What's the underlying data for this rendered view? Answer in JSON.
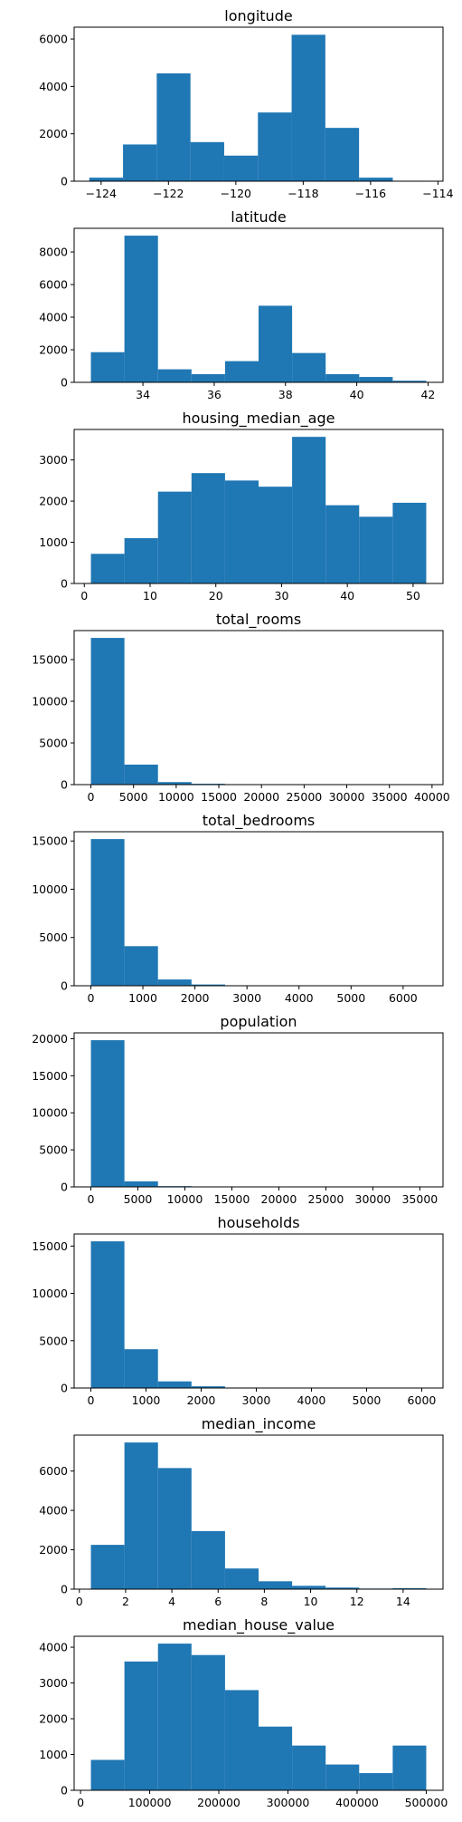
{
  "bar_color": "#1f77b4",
  "chart_data": [
    {
      "type": "bar",
      "title": "longitude",
      "bin_edges": [
        -124.35,
        -123.349,
        -122.348,
        -121.347,
        -120.346,
        -119.345,
        -118.344,
        -117.343,
        -116.342,
        -115.341,
        -114.31
      ],
      "values": [
        150,
        1550,
        4550,
        1650,
        1080,
        2900,
        6180,
        2250,
        150,
        20
      ],
      "xlim": [
        -124.8,
        -113.85
      ],
      "ylim": [
        0,
        6500
      ],
      "xticks": [
        -124,
        -122,
        -120,
        -118,
        -116,
        -114
      ],
      "xtick_labels": [
        "−124",
        "−122",
        "−120",
        "−118",
        "−116",
        "−114"
      ],
      "yticks": [
        0,
        2000,
        4000,
        6000
      ],
      "ytick_labels": [
        "0",
        "2000",
        "4000",
        "6000"
      ]
    },
    {
      "type": "bar",
      "title": "latitude",
      "bin_edges": [
        32.54,
        33.481,
        34.422,
        35.363,
        36.304,
        37.245,
        38.186,
        39.127,
        40.068,
        41.009,
        41.95
      ],
      "values": [
        1850,
        9000,
        800,
        500,
        1300,
        4700,
        1800,
        500,
        330,
        100
      ],
      "xlim": [
        32.07,
        42.42
      ],
      "ylim": [
        0,
        9450
      ],
      "xticks": [
        34,
        36,
        38,
        40,
        42
      ],
      "xtick_labels": [
        "34",
        "36",
        "38",
        "40",
        "42"
      ],
      "yticks": [
        0,
        2000,
        4000,
        6000,
        8000
      ],
      "ytick_labels": [
        "0",
        "2000",
        "4000",
        "6000",
        "8000"
      ]
    },
    {
      "type": "bar",
      "title": "housing_median_age",
      "bin_edges": [
        1,
        6.1,
        11.2,
        16.3,
        21.4,
        26.5,
        31.6,
        36.7,
        41.8,
        46.9,
        52
      ],
      "values": [
        720,
        1100,
        2230,
        2680,
        2500,
        2350,
        3560,
        1900,
        1620,
        1960
      ],
      "xlim": [
        -1.55,
        54.55
      ],
      "ylim": [
        0,
        3740
      ],
      "xticks": [
        0,
        10,
        20,
        30,
        40,
        50
      ],
      "xtick_labels": [
        "0",
        "10",
        "20",
        "30",
        "40",
        "50"
      ],
      "yticks": [
        0,
        1000,
        2000,
        3000
      ],
      "ytick_labels": [
        "0",
        "1000",
        "2000",
        "3000"
      ]
    },
    {
      "type": "bar",
      "title": "total_rooms",
      "bin_edges": [
        2,
        3934,
        7866,
        11798,
        15730,
        19662,
        23594,
        27526,
        31458,
        35390,
        39320
      ],
      "values": [
        17600,
        2400,
        300,
        100,
        30,
        10,
        5,
        3,
        2,
        1
      ],
      "xlim": [
        -1964,
        41286
      ],
      "ylim": [
        0,
        18480
      ],
      "xticks": [
        0,
        5000,
        10000,
        15000,
        20000,
        25000,
        30000,
        35000,
        40000
      ],
      "xtick_labels": [
        "0",
        "5000",
        "10000",
        "15000",
        "20000",
        "25000",
        "30000",
        "35000",
        "40000"
      ],
      "yticks": [
        0,
        5000,
        10000,
        15000
      ],
      "ytick_labels": [
        "0",
        "5000",
        "10000",
        "15000"
      ]
    },
    {
      "type": "bar",
      "title": "total_bedrooms",
      "bin_edges": [
        1,
        645.4,
        1289.8,
        1934.2,
        2578.6,
        3223,
        3867.4,
        4511.8,
        5156.2,
        5800.6,
        6445
      ],
      "values": [
        15200,
        4100,
        650,
        130,
        20,
        5,
        3,
        2,
        1,
        1
      ],
      "xlim": [
        -321,
        6767
      ],
      "ylim": [
        0,
        15960
      ],
      "xticks": [
        0,
        1000,
        2000,
        3000,
        4000,
        5000,
        6000
      ],
      "xtick_labels": [
        "0",
        "1000",
        "2000",
        "3000",
        "4000",
        "5000",
        "6000"
      ],
      "yticks": [
        0,
        5000,
        10000,
        15000
      ],
      "ytick_labels": [
        "0",
        "5000",
        "10000",
        "15000"
      ]
    },
    {
      "type": "bar",
      "title": "population",
      "bin_edges": [
        3,
        3570.3,
        7137.6,
        10704.9,
        14272.2,
        17839.5,
        21406.8,
        24974.1,
        28541.4,
        32108.7,
        35682
      ],
      "values": [
        19800,
        750,
        100,
        20,
        5,
        2,
        1,
        1,
        0,
        1
      ],
      "xlim": [
        -1781,
        37466
      ],
      "ylim": [
        0,
        20790
      ],
      "xticks": [
        0,
        5000,
        10000,
        15000,
        20000,
        25000,
        30000,
        35000
      ],
      "xtick_labels": [
        "0",
        "5000",
        "10000",
        "15000",
        "20000",
        "25000",
        "30000",
        "35000"
      ],
      "yticks": [
        0,
        5000,
        10000,
        15000,
        20000
      ],
      "ytick_labels": [
        "0",
        "5000",
        "10000",
        "15000",
        "20000"
      ]
    },
    {
      "type": "bar",
      "title": "households",
      "bin_edges": [
        1,
        609.1,
        1217.2,
        1825.3,
        2433.4,
        3041.5,
        3649.6,
        4257.7,
        4865.8,
        5473.9,
        6082
      ],
      "values": [
        15500,
        4100,
        700,
        180,
        50,
        15,
        5,
        3,
        1,
        1
      ],
      "xlim": [
        -303,
        6386
      ],
      "ylim": [
        0,
        16275
      ],
      "xticks": [
        0,
        1000,
        2000,
        3000,
        4000,
        5000,
        6000
      ],
      "xtick_labels": [
        "0",
        "1000",
        "2000",
        "3000",
        "4000",
        "5000",
        "6000"
      ],
      "yticks": [
        0,
        5000,
        10000,
        15000
      ],
      "ytick_labels": [
        "0",
        "5000",
        "10000",
        "15000"
      ]
    },
    {
      "type": "bar",
      "title": "median_income",
      "bin_edges": [
        0.5,
        1.95,
        3.4,
        4.85,
        6.3,
        7.75,
        9.2,
        10.65,
        12.1,
        13.55,
        15
      ],
      "values": [
        2250,
        7450,
        6150,
        2950,
        1050,
        400,
        170,
        80,
        30,
        50
      ],
      "xlim": [
        -0.225,
        15.725
      ],
      "ylim": [
        0,
        7823
      ],
      "xticks": [
        0,
        2,
        4,
        6,
        8,
        10,
        12,
        14
      ],
      "xtick_labels": [
        "0",
        "2",
        "4",
        "6",
        "8",
        "10",
        "12",
        "14"
      ],
      "yticks": [
        0,
        2000,
        4000,
        6000
      ],
      "ytick_labels": [
        "0",
        "2000",
        "4000",
        "6000"
      ]
    },
    {
      "type": "bar",
      "title": "median_house_value",
      "bin_edges": [
        15000,
        63500,
        112000,
        160500,
        209000,
        257500,
        306000,
        354500,
        403000,
        451500,
        500000
      ],
      "values": [
        850,
        3600,
        4100,
        3780,
        2800,
        1780,
        1250,
        720,
        480,
        1250
      ],
      "xlim": [
        -9250,
        524250
      ],
      "ylim": [
        0,
        4305
      ],
      "xticks": [
        0,
        100000,
        200000,
        300000,
        400000,
        500000
      ],
      "xtick_labels": [
        "0",
        "100000",
        "200000",
        "300000",
        "400000",
        "500000"
      ],
      "yticks": [
        0,
        1000,
        2000,
        3000,
        4000
      ],
      "ytick_labels": [
        "0",
        "1000",
        "2000",
        "3000",
        "4000"
      ]
    }
  ]
}
